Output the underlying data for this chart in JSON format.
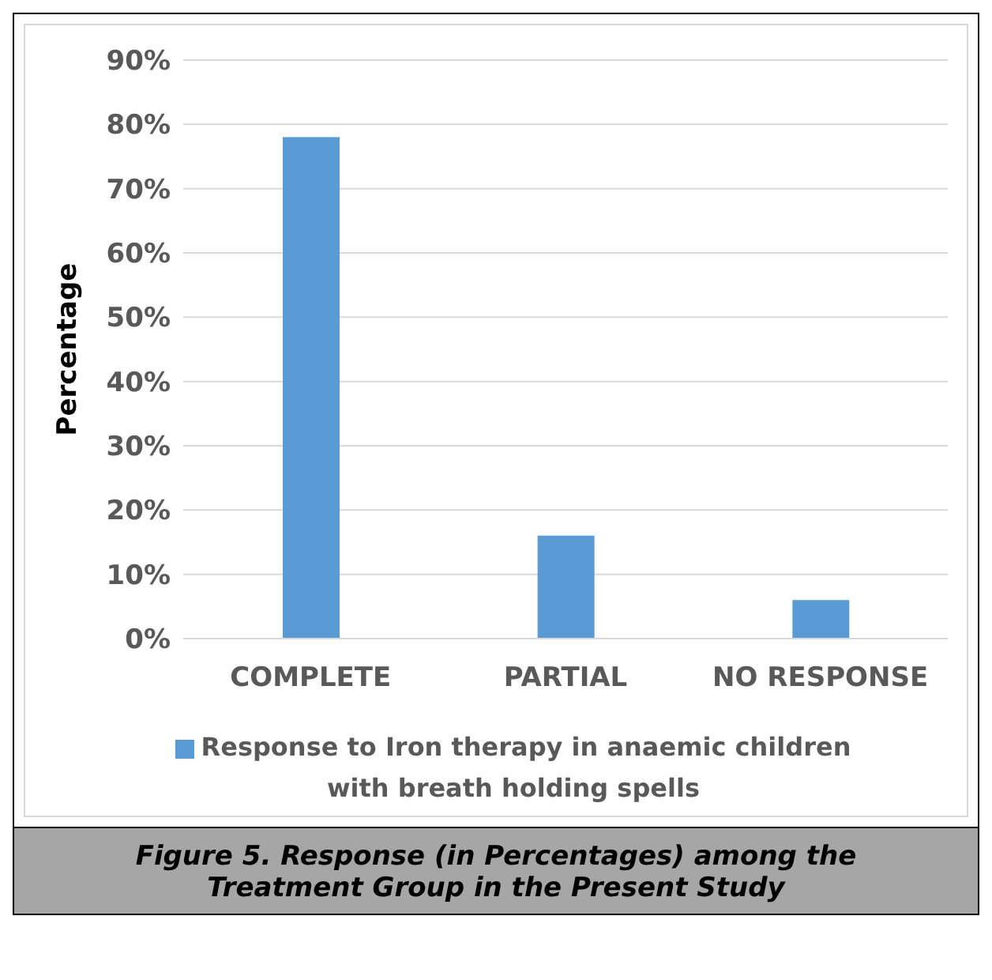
{
  "chart_data": {
    "type": "bar",
    "title": "Figure 5. Response (in Percentages) among the Treatment Group in the Present Study",
    "ylabel": "Percentage",
    "categories": [
      "COMPLETE",
      "PARTIAL",
      "NO RESPONSE"
    ],
    "series": [
      {
        "name": "Response to Iron therapy in anaemic children with breath holding spells",
        "color": "#5b9bd5",
        "values": [
          78,
          16,
          6
        ]
      }
    ],
    "ylim": [
      0,
      90
    ],
    "yticks": [
      {
        "value": 0,
        "label": "0%"
      },
      {
        "value": 10,
        "label": "10%"
      },
      {
        "value": 20,
        "label": "20%"
      },
      {
        "value": 30,
        "label": "30%"
      },
      {
        "value": 40,
        "label": "40%"
      },
      {
        "value": 50,
        "label": "50%"
      },
      {
        "value": 60,
        "label": "60%"
      },
      {
        "value": 70,
        "label": "70%"
      },
      {
        "value": 80,
        "label": "80%"
      },
      {
        "value": 90,
        "label": "90%"
      }
    ],
    "grid": "y",
    "legend": "bottom"
  }
}
